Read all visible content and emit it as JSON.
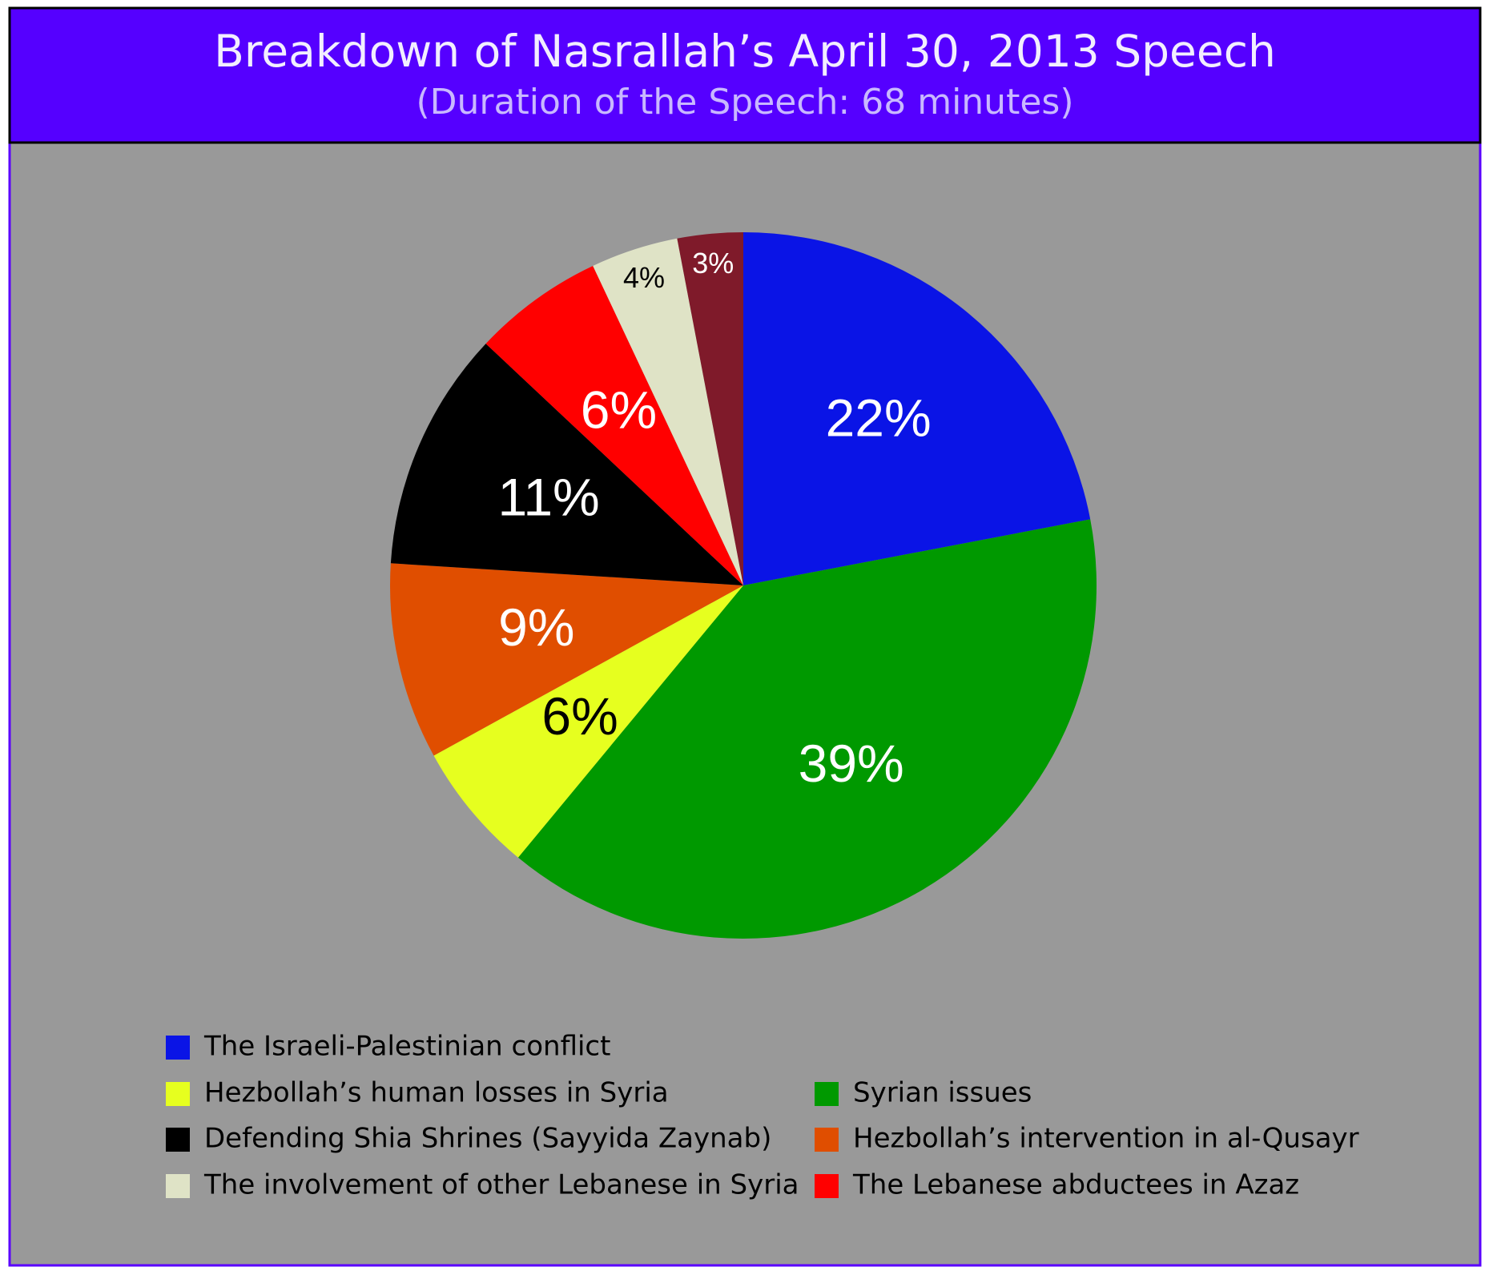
{
  "chart_data": {
    "type": "pie",
    "title": "Breakdown of Nasrallah’s  April 30, 2013 Speech",
    "subtitle": "(Duration of the Speech: 68 minutes)",
    "categories": [
      "The Israeli-Palestinian conflict",
      "Syrian issues",
      "Hezbollah’s human losses in Syria",
      "Hezbollah’s intervention in al-Qusayr",
      "Defending Shia Shrines (Sayyida Zaynab)",
      "The Lebanese abductees in Azaz",
      "The involvement of other Lebanese in Syria",
      null
    ],
    "values": [
      22,
      39,
      6,
      9,
      11,
      6,
      4,
      3
    ],
    "value_labels": [
      "22%",
      "39%",
      "6%",
      "9%",
      "11%",
      "6%",
      "4%",
      "3%"
    ],
    "colors": [
      "#0a14e6",
      "#009900",
      "#e6ff1f",
      "#e04e00",
      "#000000",
      "#ff0000",
      "#dfe3c6",
      "#7f1a2a"
    ]
  }
}
